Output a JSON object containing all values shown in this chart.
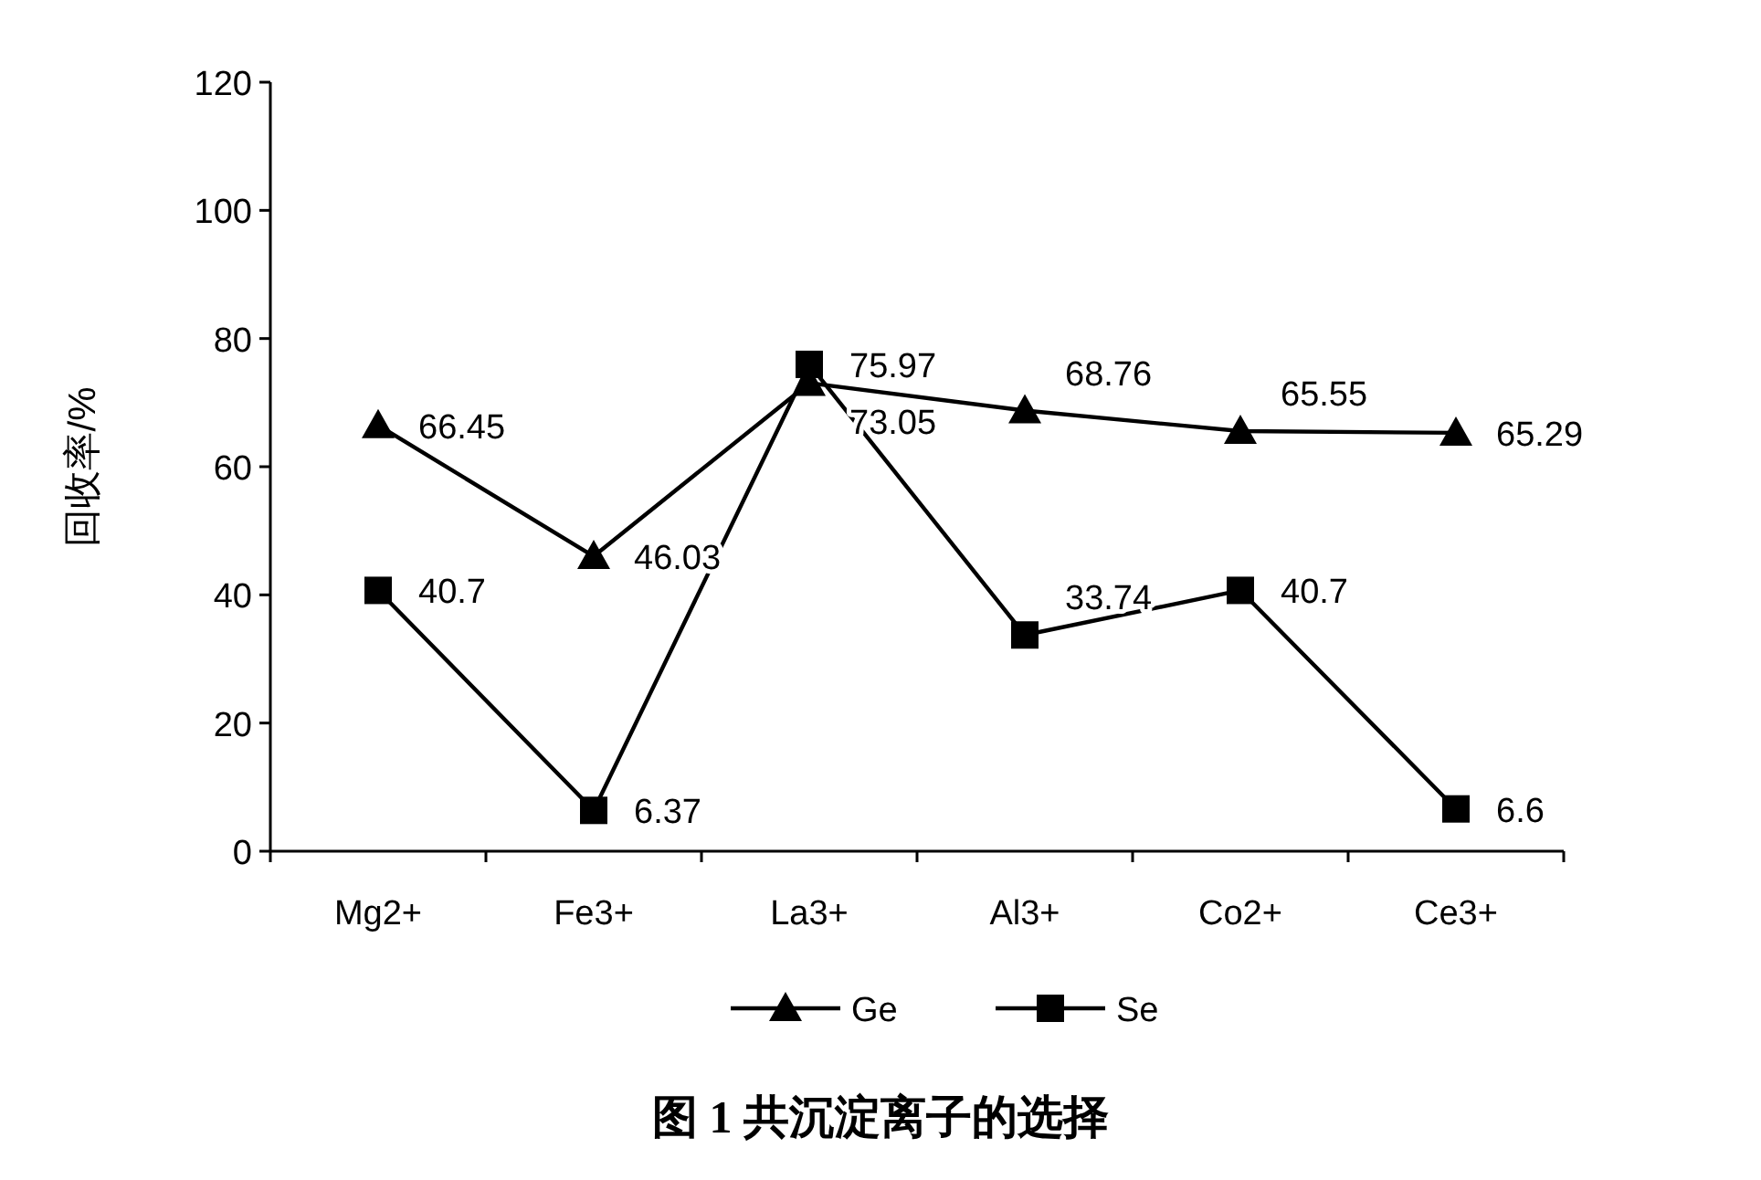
{
  "chart_data": {
    "type": "line",
    "title": "图 1  共沉淀离子的选择",
    "ylabel": "回收率/%",
    "categories": [
      "Mg2+",
      "Fe3+",
      "La3+",
      "Al3+",
      "Co2+",
      "Ce3+"
    ],
    "series": [
      {
        "name": "Ge",
        "color": "#000000",
        "marker": "triangle",
        "values": [
          66.45,
          46.03,
          73.05,
          68.76,
          65.55,
          65.29
        ]
      },
      {
        "name": "Se",
        "color": "#000000",
        "marker": "square",
        "values": [
          40.7,
          6.37,
          75.97,
          33.74,
          40.7,
          6.6
        ]
      }
    ],
    "ylim": [
      0,
      120
    ],
    "yticks": [
      0,
      20,
      40,
      60,
      80,
      100,
      120
    ],
    "grid": false,
    "legend": "bottom",
    "data_labels": true,
    "line_style": "solid"
  }
}
